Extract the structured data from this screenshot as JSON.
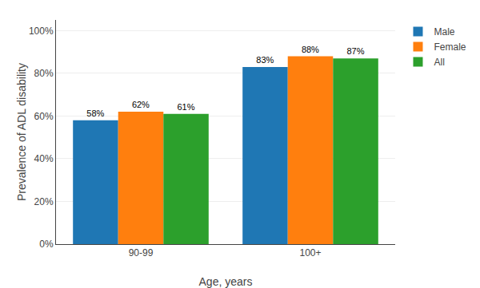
{
  "chart_data": {
    "type": "bar",
    "xlabel": "Age, years",
    "ylabel": "Prevalence of ADL disability",
    "categories": [
      "90-99",
      "100+"
    ],
    "series": [
      {
        "name": "Male",
        "values": [
          0.58,
          0.83
        ],
        "value_labels": [
          "58%",
          "83%"
        ]
      },
      {
        "name": "Female",
        "values": [
          0.62,
          0.88
        ],
        "value_labels": [
          "62%",
          "88%"
        ]
      },
      {
        "name": "All",
        "values": [
          0.61,
          0.87
        ],
        "value_labels": [
          "61%",
          "87%"
        ]
      }
    ],
    "ylim": [
      0,
      1.05
    ],
    "yticks": [
      {
        "value": 0,
        "label": "0%"
      },
      {
        "value": 0.2,
        "label": "20%"
      },
      {
        "value": 0.4,
        "label": "40%"
      },
      {
        "value": 0.6,
        "label": "60%"
      },
      {
        "value": 0.8,
        "label": "80%"
      },
      {
        "value": 1.0,
        "label": "100%"
      }
    ],
    "grid": true,
    "legend": "upper right",
    "data_labels": true
  }
}
